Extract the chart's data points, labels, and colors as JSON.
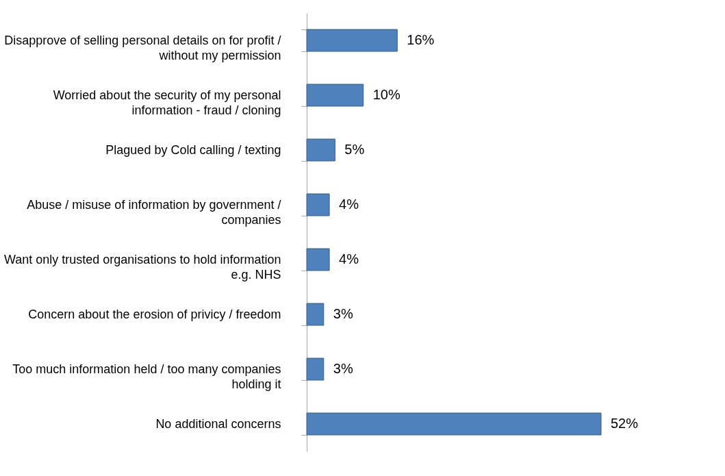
{
  "chart_data": {
    "type": "bar",
    "orientation": "horizontal",
    "categories": [
      "Disapprove of selling personal details on for profit / without my permission",
      "Worried about the security of my personal information - fraud / cloning",
      "Plagued by Cold calling / texting",
      "Abuse / misuse of information by government / companies",
      "Want only trusted organisations to hold information e.g. NHS",
      "Concern about the erosion of privicy / freedom",
      "Too much information held / too many companies holding it",
      "No additional concerns"
    ],
    "values": [
      16,
      10,
      5,
      4,
      4,
      3,
      3,
      52
    ],
    "value_labels": [
      "16%",
      "10%",
      "5%",
      "4%",
      "4%",
      "3%",
      "3%",
      "52%"
    ],
    "color": "#4f81bd"
  }
}
